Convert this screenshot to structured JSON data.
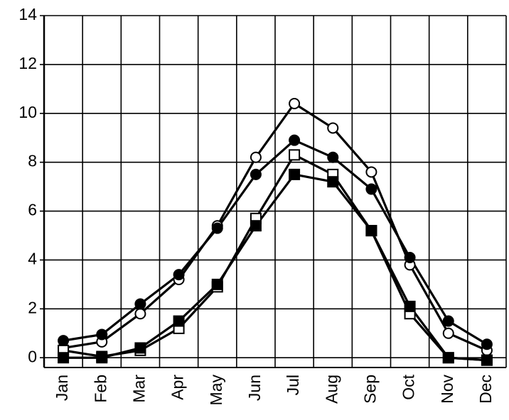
{
  "chart_data": {
    "type": "line",
    "categories": [
      "Jan",
      "Feb",
      "Mar",
      "Apr",
      "May",
      "Jun",
      "Jul",
      "Aug",
      "Sep",
      "Oct",
      "Nov",
      "Dec"
    ],
    "series": [
      {
        "color": "#000000",
        "marker": "circle",
        "filled": false,
        "values": [
          0.4,
          0.65,
          1.8,
          3.2,
          5.4,
          8.2,
          10.4,
          9.4,
          7.6,
          3.8,
          1.0,
          0.3
        ]
      },
      {
        "color": "#000000",
        "marker": "circle",
        "filled": true,
        "values": [
          0.7,
          0.95,
          2.2,
          3.4,
          5.3,
          7.5,
          8.9,
          8.2,
          6.9,
          4.1,
          1.5,
          0.55
        ]
      },
      {
        "color": "#000000",
        "marker": "square",
        "filled": false,
        "values": [
          0.3,
          0.05,
          0.3,
          1.2,
          2.9,
          5.7,
          8.3,
          7.5,
          5.2,
          1.8,
          0,
          -0.1
        ]
      },
      {
        "color": "#000000",
        "marker": "square",
        "filled": true,
        "values": [
          0,
          0,
          0.4,
          1.5,
          3.0,
          5.4,
          7.5,
          7.2,
          5.2,
          2.1,
          0,
          -0.1
        ]
      }
    ],
    "ylim": [
      -0.4,
      14
    ],
    "yticks": [
      0,
      2,
      4,
      6,
      8,
      10,
      12,
      14
    ],
    "grid": true
  }
}
